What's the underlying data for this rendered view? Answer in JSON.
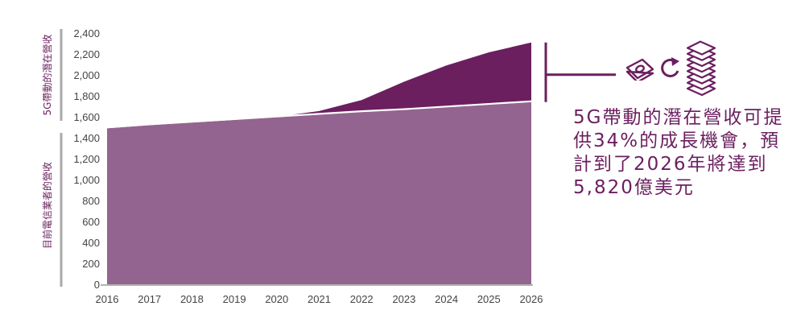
{
  "chart_data": {
    "type": "area",
    "x": [
      2016,
      2017,
      2018,
      2019,
      2020,
      2021,
      2022,
      2023,
      2024,
      2025,
      2026
    ],
    "tick_labels_x": [
      "2016",
      "2017",
      "2018",
      "2019",
      "2020",
      "2021",
      "2022",
      "2023",
      "2024",
      "2025",
      "2026"
    ],
    "series": [
      {
        "name": "目前電信業者的營收",
        "values": [
          1490,
          1520,
          1545,
          1570,
          1595,
          1620,
          1645,
          1665,
          1690,
          1715,
          1740
        ],
        "color": "#93648f"
      },
      {
        "name": "5G帶動的潛在營收",
        "values": [
          1490,
          1520,
          1545,
          1570,
          1600,
          1655,
          1760,
          1935,
          2090,
          2215,
          2310
        ],
        "color": "#6b1f5f"
      }
    ],
    "ylim": [
      0,
      2400
    ],
    "yticks": [
      0,
      200,
      400,
      600,
      800,
      1000,
      1200,
      1400,
      1600,
      1800,
      2000,
      2200,
      2400
    ],
    "ytick_labels": [
      "0",
      "200",
      "400",
      "600",
      "800",
      "1,000",
      "1,200",
      "1,400",
      "1,600",
      "1,800",
      "2,000",
      "2,200",
      "2,400"
    ],
    "ylabel_bottom": "目前電信業者的營收",
    "ylabel_top": "5G帶動的潛在營收",
    "grid": false,
    "annotation_lines": [
      "5G帶動的潛在營收可提",
      "供34%的成長機會，預",
      "計到了2026年將達到",
      "5,820億美元"
    ]
  },
  "colors": {
    "accent": "#6b1f5f",
    "base_area": "#93648f",
    "tick_text": "#444444"
  },
  "icons": [
    "money-icon",
    "refresh-arrow-icon",
    "money-stack-icon"
  ]
}
